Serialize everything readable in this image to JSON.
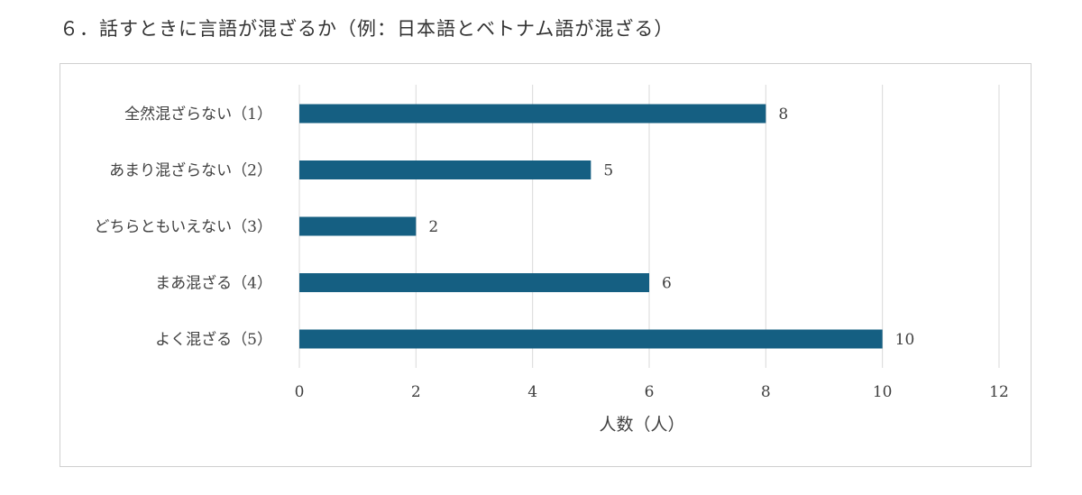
{
  "page": {
    "heading": "６．話すときに言語が混ざるか（例：日本語とベトナム語が混ざる）"
  },
  "colors": {
    "bar": "#155f82",
    "grid": "#d9d9d9",
    "text": "#404040"
  },
  "chart_data": {
    "type": "bar",
    "orientation": "horizontal",
    "title": "",
    "categories": [
      "全然混ざらない（1）",
      "あまり混ざらない（2）",
      "どちらともいえない（3）",
      "まあ混ざる（4）",
      "よく混ざる（5）"
    ],
    "values": [
      8,
      5,
      2,
      6,
      10
    ],
    "xlabel": "人数（人）",
    "ylabel": "",
    "xlim": [
      0,
      12
    ],
    "xticks": [
      "0",
      "2",
      "4",
      "6",
      "8",
      "10",
      "12"
    ],
    "grid": true,
    "legend": "none",
    "data_labels": true
  }
}
